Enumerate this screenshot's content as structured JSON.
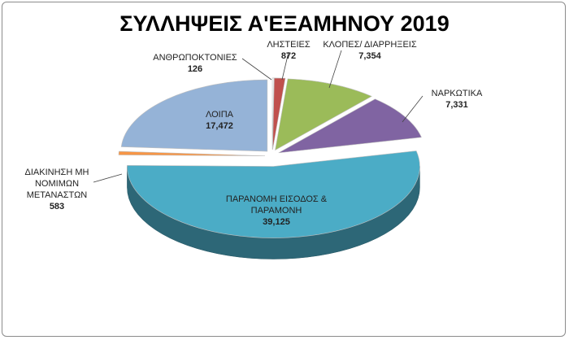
{
  "chart_data": {
    "type": "pie",
    "title": "ΣΥΛΛΗΨΕΙΣ Α'ΕΞΑΜΗΝΟΥ 2019",
    "categories": [
      "ΑΝΘΡΩΠΟΚΤΟΝΙΕΣ",
      "ΛΗΣΤΕΙΕΣ",
      "ΚΛΟΠΕΣ/ ΔΙΑΡΡΗΞΕΙΣ",
      "ΝΑΡΚΩΤΙΚΑ",
      "ΠΑΡΑΝΟΜΗ ΕΙΣΟΔΟΣ & ΠΑΡΑΜΟΝΗ",
      "ΔΙΑΚΙΝΗΣΗ ΜΗ ΝΟΜΙΜΩΝ ΜΕΤΑΝΑΣΤΩΝ",
      "ΛΟΙΠΑ"
    ],
    "values": [
      126,
      872,
      7354,
      7331,
      39125,
      583,
      17472
    ],
    "value_labels": [
      "126",
      "872",
      "7,354",
      "7,331",
      "39,125",
      "583",
      "17,472"
    ],
    "colors": [
      "#ffffff",
      "#c0504d",
      "#9bbb59",
      "#8064a2",
      "#4bacc6",
      "#f79646",
      "#95b3d7"
    ]
  }
}
